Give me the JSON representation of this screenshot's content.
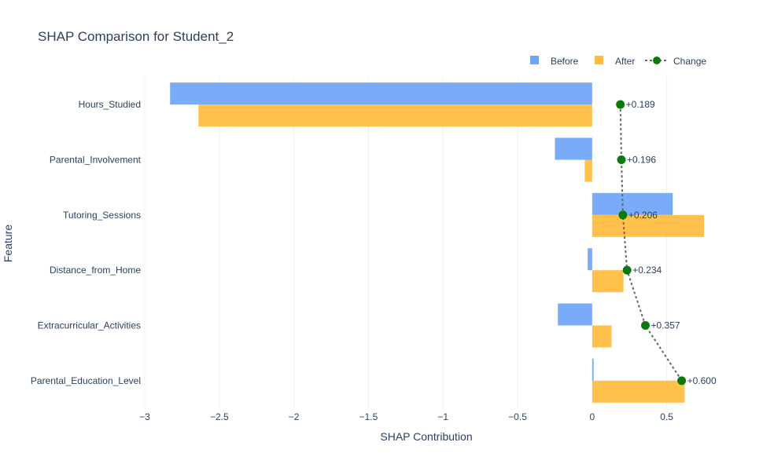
{
  "chart_data": {
    "type": "bar",
    "orientation": "horizontal",
    "title": "SHAP Comparison for Student_2",
    "xlabel": "SHAP Contribution",
    "ylabel": "Feature",
    "xlim": [
      -3.0,
      0.85
    ],
    "xticks": [
      -3,
      -2.5,
      -2,
      -1.5,
      -1,
      -0.5,
      0,
      0.5
    ],
    "xtick_labels": [
      "−3",
      "−2.5",
      "−2",
      "−1.5",
      "−1",
      "−0.5",
      "0",
      "0.5"
    ],
    "grid": true,
    "legend_position": "top-right",
    "categories": [
      "Hours_Studied",
      "Parental_Involvement",
      "Tutoring_Sessions",
      "Distance_from_Home",
      "Extracurricular_Activities",
      "Parental_Education_Level"
    ],
    "series": [
      {
        "name": "Before",
        "kind": "bar",
        "color": "#6ea4f7",
        "values": [
          -2.83,
          -0.25,
          0.54,
          -0.03,
          -0.23,
          0.01
        ]
      },
      {
        "name": "After",
        "kind": "bar",
        "color": "#ffbb3d",
        "values": [
          -2.64,
          -0.05,
          0.75,
          0.21,
          0.13,
          0.62
        ]
      },
      {
        "name": "Change",
        "kind": "line+markers",
        "color": "#0a7a0a",
        "line_color": "#666666",
        "values": [
          0.189,
          0.196,
          0.206,
          0.234,
          0.357,
          0.6
        ],
        "labels": [
          "+0.189",
          "+0.196",
          "+0.206",
          "+0.234",
          "+0.357",
          "+0.600"
        ]
      }
    ]
  }
}
